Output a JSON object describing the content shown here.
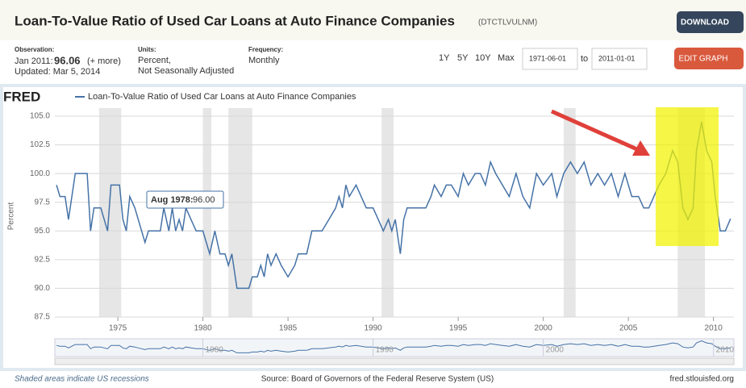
{
  "header": {
    "title": "Loan-To-Value Ratio of Used Car Loans at Auto Finance Companies",
    "series_id": "(DTCTLVULNM)",
    "download": "DOWNLOAD",
    "edit_graph": "EDIT GRAPH"
  },
  "info": {
    "observation_label": "Observation:",
    "observation_date": "Jan 2011:",
    "observation_value": 96.06,
    "more": "(+ more)",
    "updated": "Updated: Mar 5, 2014",
    "units_label": "Units:",
    "units_1": "Percent,",
    "units_2": "Not Seasonally Adjusted",
    "frequency_label": "Frequency:",
    "frequency": "Monthly"
  },
  "controls": {
    "ranges": [
      "1Y",
      "5Y",
      "10Y",
      "Max"
    ],
    "start": "1971-06-01",
    "to": "to",
    "end": "2011-01-01"
  },
  "logo": "FRED",
  "footer": {
    "note": "Shaded areas indicate US recessions",
    "source": "Source: Board of Governors of the Federal Reserve System (US)",
    "site": "fred.stlouisfed.org"
  },
  "chart_data": {
    "type": "line",
    "y_label": "Percent",
    "xlim": [
      1971.3,
      2011.2
    ],
    "xticks": [
      1975,
      1980,
      1985,
      1990,
      1995,
      2000,
      2005,
      2010
    ],
    "ylim": [
      87.5,
      105
    ],
    "yticks": [
      {
        "value": 87.5,
        "label": "87.5"
      },
      {
        "value": 90,
        "label": "90.0"
      },
      92.5,
      {
        "value": 95,
        "label": "95.0"
      },
      97.5,
      {
        "value": 100,
        "label": "100.0"
      },
      102.5,
      {
        "value": 105,
        "label": "105.0"
      }
    ],
    "grid": true,
    "recessions": [
      [
        1973.9,
        1975.2
      ],
      [
        1980.0,
        1980.5
      ],
      [
        1981.5,
        1982.9
      ],
      [
        1990.5,
        1991.2
      ],
      [
        2001.2,
        2001.9
      ],
      [
        2007.9,
        2009.5
      ]
    ],
    "navigator_ticks": [
      1980,
      1990,
      2000,
      2010
    ],
    "tooltip": {
      "label": "Aug 1978:",
      "value": 96,
      "value_label": "96.00"
    },
    "series": [
      {
        "name": "Loan-To-Value Ratio of Used Car Loans at Auto Finance Companies",
        "color": "#4572a7",
        "x": [
          1971.4,
          1971.6,
          1971.9,
          1972.1,
          1972.3,
          1972.5,
          1973.2,
          1973.4,
          1973.6,
          1974.0,
          1974.2,
          1974.4,
          1974.6,
          1975.1,
          1975.3,
          1975.5,
          1975.7,
          1976.0,
          1976.2,
          1976.4,
          1976.6,
          1976.8,
          1977.5,
          1977.7,
          1978.0,
          1978.2,
          1978.4,
          1978.6,
          1978.8,
          1979.0,
          1979.3,
          1979.6,
          1980.0,
          1980.2,
          1980.4,
          1980.7,
          1981.0,
          1981.3,
          1981.5,
          1981.7,
          1982.0,
          1982.4,
          1982.7,
          1982.9,
          1983.2,
          1983.4,
          1983.6,
          1983.8,
          1984.0,
          1984.3,
          1984.6,
          1985.0,
          1985.4,
          1985.6,
          1986.1,
          1986.4,
          1987.0,
          1987.4,
          1987.8,
          1988.0,
          1988.2,
          1988.4,
          1988.6,
          1989.0,
          1989.3,
          1989.6,
          1990.0,
          1990.3,
          1990.6,
          1990.9,
          1991.1,
          1991.3,
          1991.6,
          1991.8,
          1992.0,
          1992.8,
          1993.1,
          1993.4,
          1993.6,
          1994.0,
          1994.3,
          1994.6,
          1995.0,
          1995.3,
          1995.6,
          1996.0,
          1996.3,
          1996.6,
          1996.9,
          1997.2,
          1997.6,
          1998.0,
          1998.4,
          1998.8,
          1999.2,
          1999.6,
          2000.0,
          2000.5,
          2000.8,
          2001.2,
          2001.6,
          2002.0,
          2002.4,
          2002.8,
          2003.2,
          2003.6,
          2004.0,
          2004.4,
          2004.8,
          2005.2,
          2005.6,
          2005.9,
          2006.2,
          2006.5,
          2006.8,
          2007.2,
          2007.6,
          2007.9,
          2008.2,
          2008.5,
          2008.8,
          2009.0,
          2009.3,
          2009.6,
          2009.9,
          2010.1,
          2010.4,
          2010.7,
          2011.0
        ],
        "values": [
          99,
          98,
          98,
          96,
          98,
          100,
          100,
          95,
          97,
          97,
          96,
          95,
          99,
          99,
          96,
          95,
          98,
          97,
          96,
          95,
          94,
          95,
          95,
          97,
          95,
          97,
          95,
          96,
          95,
          97,
          96,
          95,
          95,
          94,
          93,
          95,
          93,
          93,
          92,
          93,
          90,
          90,
          90,
          91,
          91,
          92,
          91,
          93,
          92,
          93,
          92,
          91,
          92,
          93,
          93,
          95,
          95,
          96,
          97,
          98,
          97,
          99,
          98,
          99,
          98,
          97,
          97,
          96,
          95,
          96,
          95,
          96,
          93,
          96,
          97,
          97,
          97,
          98,
          99,
          98,
          99,
          99,
          98,
          100,
          99,
          100,
          100,
          99,
          101,
          100,
          99,
          98,
          100,
          98,
          97,
          100,
          99,
          100,
          98,
          100,
          101,
          100,
          101,
          99,
          100,
          99,
          100,
          98,
          100,
          98,
          98,
          97,
          97,
          98,
          99,
          100,
          102,
          101,
          97,
          96,
          97,
          102,
          104.5,
          102,
          101,
          98,
          95,
          95,
          96.06
        ]
      }
    ]
  }
}
